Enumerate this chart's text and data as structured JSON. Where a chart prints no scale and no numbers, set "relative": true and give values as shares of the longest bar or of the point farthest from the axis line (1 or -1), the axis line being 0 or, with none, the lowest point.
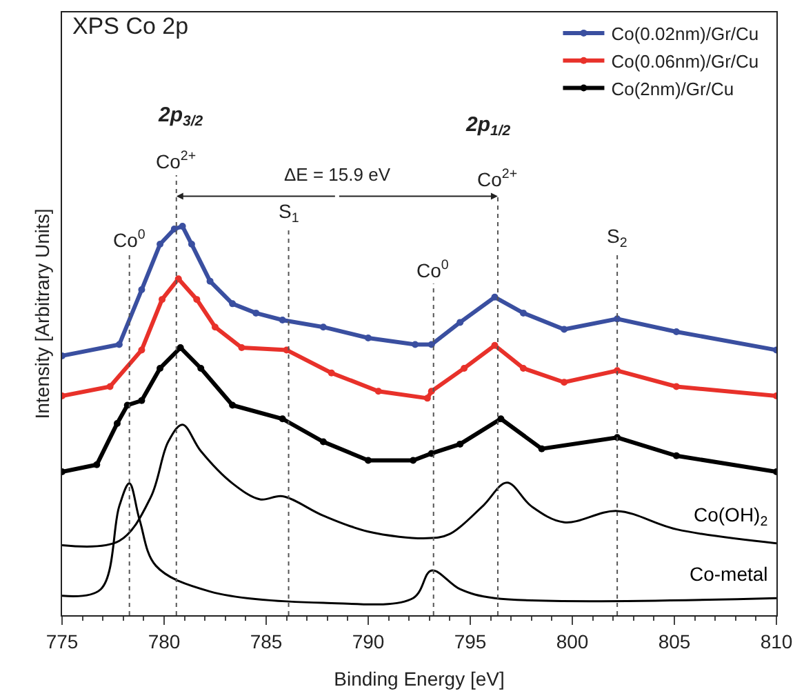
{
  "chart_data": {
    "type": "line",
    "title": "XPS Co 2p",
    "xlabel": "Binding Energy [eV]",
    "ylabel": "Intensity [Arbitrary Units]",
    "relative": true,
    "xlim": [
      775,
      810
    ],
    "xticks": [
      775,
      780,
      785,
      790,
      795,
      800,
      805,
      810
    ],
    "legend": "top right",
    "marker": "circle",
    "series": [
      {
        "name": "Co(0.02nm)/Gr/Cu",
        "color": "#3a4fa0",
        "x": [
          775,
          777.8,
          778.9,
          779.8,
          780.5,
          780.9,
          781.35,
          782.25,
          783.35,
          784.5,
          785.8,
          787.8,
          790.0,
          792.3,
          793.1,
          794.5,
          796.2,
          797.6,
          799.6,
          802.2,
          805.1,
          810
        ],
        "values": [
          0.667,
          0.696,
          0.837,
          0.954,
          0.993,
          1.0,
          0.954,
          0.859,
          0.801,
          0.777,
          0.759,
          0.741,
          0.713,
          0.696,
          0.696,
          0.753,
          0.818,
          0.777,
          0.735,
          0.762,
          0.729,
          0.682
        ]
      },
      {
        "name": "Co(0.06nm)/Gr/Cu",
        "color": "#e8312a",
        "x": [
          775,
          777.35,
          778.9,
          779.9,
          780.7,
          781.6,
          782.5,
          783.8,
          786.0,
          788.2,
          790.5,
          792.9,
          793.1,
          794.7,
          796.2,
          797.6,
          799.6,
          802.2,
          805.1,
          810
        ],
        "values": [
          0.564,
          0.588,
          0.682,
          0.812,
          0.865,
          0.812,
          0.741,
          0.688,
          0.682,
          0.623,
          0.576,
          0.558,
          0.576,
          0.635,
          0.694,
          0.635,
          0.599,
          0.629,
          0.588,
          0.564
        ]
      },
      {
        "name": "Co(2nm)/Gr/Cu",
        "color": "#000000",
        "x": [
          775,
          776.7,
          777.7,
          778.2,
          778.9,
          779.8,
          780.8,
          781.8,
          783.35,
          785.8,
          787.8,
          790.0,
          792.2,
          793.1,
          794.5,
          796.5,
          798.5,
          802.2,
          805.1,
          810
        ],
        "values": [
          0.369,
          0.387,
          0.493,
          0.54,
          0.552,
          0.635,
          0.688,
          0.635,
          0.54,
          0.505,
          0.446,
          0.398,
          0.398,
          0.416,
          0.44,
          0.505,
          0.428,
          0.457,
          0.41,
          0.369
        ]
      },
      {
        "name": "Co(OH)$_{2}$",
        "type": "line",
        "marker": "none",
        "color": "#000000",
        "x": [
          775,
          777.8,
          779.35,
          780.2,
          780.9,
          781.8,
          783.35,
          784.7,
          785.8,
          787.8,
          790.0,
          792.9,
          794.0,
          795.6,
          796.8,
          798.0,
          799.6,
          802.2,
          805.1,
          810
        ],
        "values": [
          0.18,
          0.191,
          0.304,
          0.446,
          0.49,
          0.422,
          0.339,
          0.298,
          0.306,
          0.256,
          0.215,
          0.198,
          0.209,
          0.28,
          0.341,
          0.28,
          0.239,
          0.268,
          0.221,
          0.185
        ]
      },
      {
        "name": "Co-metal",
        "type": "line",
        "marker": "none",
        "color": "#000000",
        "x": [
          775,
          776.9,
          777.8,
          778.3,
          778.8,
          779.6,
          782.25,
          787.8,
          792.2,
          793.1,
          794.5,
          796.2,
          810
        ],
        "values": [
          0.05,
          0.067,
          0.28,
          0.339,
          0.245,
          0.127,
          0.061,
          0.032,
          0.044,
          0.115,
          0.067,
          0.044,
          0.044
        ]
      }
    ],
    "ref_lines": [
      {
        "axis": "x",
        "value": 778.3,
        "label": "Co$^{0}$",
        "line_style": "dotted"
      },
      {
        "axis": "x",
        "value": 780.6,
        "label": "Co$^{2+}$",
        "line_style": "dotted"
      },
      {
        "axis": "x",
        "value": 786.1,
        "label": "S$_{1}$",
        "line_style": "dotted"
      },
      {
        "axis": "x",
        "value": 793.2,
        "label": "Co$^{0}$",
        "line_style": "dotted"
      },
      {
        "axis": "x",
        "value": 796.35,
        "label": "Co$^{2+}$",
        "line_style": "dotted"
      },
      {
        "axis": "x",
        "value": 802.2,
        "label": "S$_{2}$",
        "line_style": "dotted"
      }
    ],
    "annotations": [
      "2p$_{3/2}$",
      "2p$_{1/2}$",
      "ΔE = 15.9 eV"
    ]
  }
}
